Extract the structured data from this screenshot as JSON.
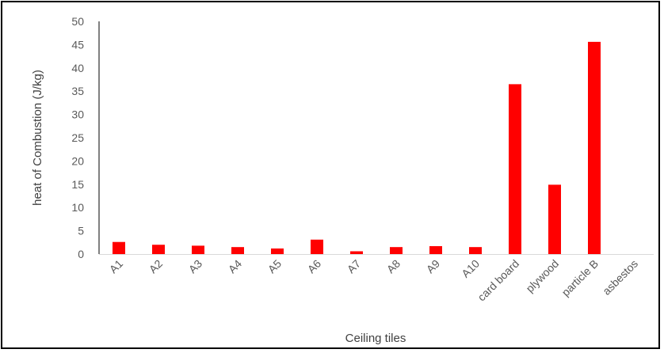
{
  "chart_data": {
    "type": "bar",
    "title": "",
    "xlabel": "Ceiling tiles",
    "ylabel": "heat of Combustion (J/kg)",
    "ylim": [
      0,
      50
    ],
    "ytick_step": 5,
    "categories": [
      "A1",
      "A2",
      "A3",
      "A4",
      "A5",
      "A6",
      "A7",
      "A8",
      "A9",
      "A10",
      "card board",
      "plywood",
      "particle B",
      "asbestos"
    ],
    "values": [
      2.6,
      2.0,
      1.8,
      1.5,
      1.2,
      3.1,
      0.6,
      1.5,
      1.7,
      1.5,
      36.5,
      14.9,
      45.6,
      0
    ],
    "bar_color": "#FF0000",
    "grid": false,
    "legend": "none"
  }
}
